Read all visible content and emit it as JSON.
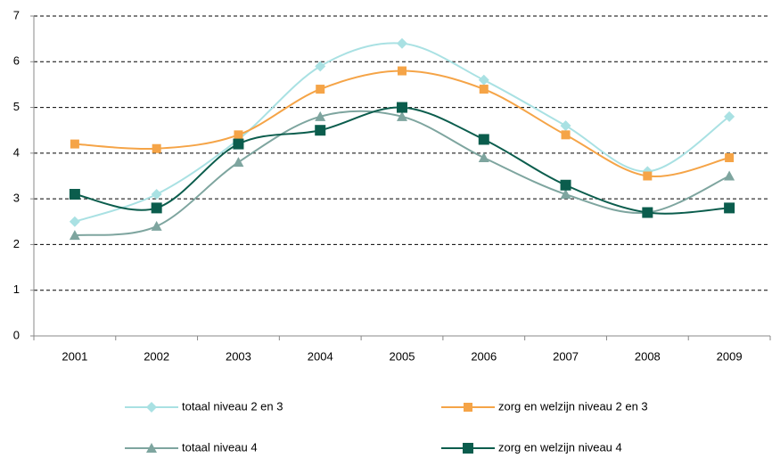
{
  "chart_data": {
    "type": "line",
    "categories": [
      "2001",
      "2002",
      "2003",
      "2004",
      "2005",
      "2006",
      "2007",
      "2008",
      "2009"
    ],
    "series": [
      {
        "name": "totaal niveau 2 en 3",
        "color": "#a9e1e3",
        "marker": "diamond",
        "values": [
          2.5,
          3.1,
          4.3,
          5.9,
          6.4,
          5.6,
          4.6,
          3.6,
          4.8
        ]
      },
      {
        "name": "zorg en welzijn niveau 2 en 3",
        "color": "#f5a447",
        "marker": "square",
        "values": [
          4.2,
          4.1,
          4.4,
          5.4,
          5.8,
          5.4,
          4.4,
          3.5,
          3.9
        ]
      },
      {
        "name": "totaal niveau 4",
        "color": "#7ea59f",
        "marker": "triangle",
        "values": [
          2.2,
          2.4,
          3.8,
          4.8,
          4.8,
          3.9,
          3.1,
          2.7,
          3.5
        ]
      },
      {
        "name": "zorg en welzijn niveau 4",
        "color": "#0b5d4d",
        "marker": "bigsquare",
        "values": [
          3.1,
          2.8,
          4.2,
          4.5,
          5.0,
          4.3,
          3.3,
          2.7,
          2.8
        ]
      }
    ],
    "ylim": [
      0,
      7
    ],
    "yticks": [
      0,
      1,
      2,
      3,
      4,
      5,
      6,
      7
    ],
    "grid": true,
    "smooth": true,
    "legend": "bottom"
  }
}
